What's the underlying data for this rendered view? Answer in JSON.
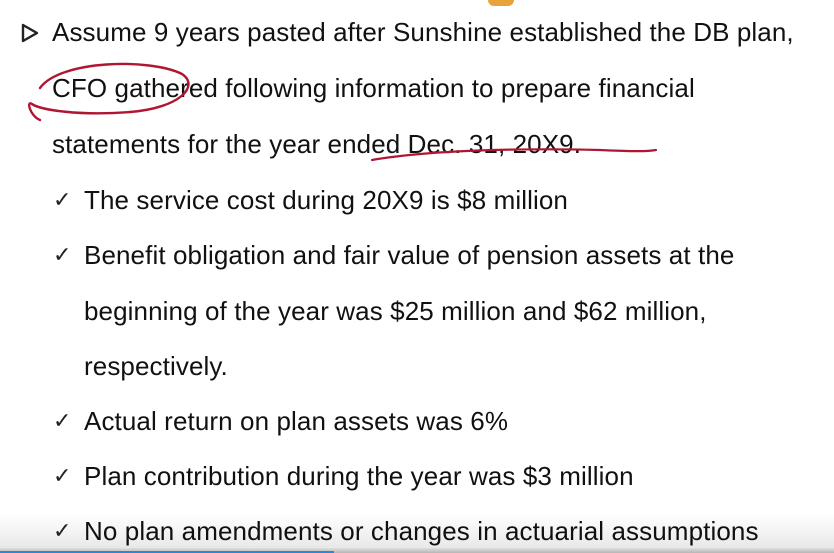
{
  "slide": {
    "bullet_main": {
      "icon": "triangle-arrow-icon",
      "lines": [
        "Assume 9 years pasted after Sunshine established the DB plan,",
        "CFO gathered following information to prepare financial",
        "statements for the year ended Dec. 31, 20X9."
      ]
    },
    "sub_bullets": [
      {
        "icon": "checkmark-icon",
        "check": "✓",
        "lines": [
          "The service cost during 20X9 is $8 million"
        ]
      },
      {
        "icon": "checkmark-icon",
        "check": "✓",
        "lines": [
          "Benefit obligation and fair value of pension assets at the",
          "beginning of the year was $25 million and $62 million,",
          "respectively."
        ]
      },
      {
        "icon": "checkmark-icon",
        "check": "✓",
        "lines": [
          "Actual return on plan assets was 6%"
        ]
      },
      {
        "icon": "checkmark-icon",
        "check": "✓",
        "lines": [
          "Plan contribution during the year was $3 million"
        ]
      },
      {
        "icon": "checkmark-icon",
        "check": "✓",
        "lines": [
          "No plan amendments or changes in actuarial assumptions"
        ]
      }
    ],
    "colors": {
      "ink_annotation": "#b01632",
      "text": "#111111",
      "video_progress": "#2a87d9"
    }
  },
  "video": {
    "progress_fraction": 0.4
  }
}
